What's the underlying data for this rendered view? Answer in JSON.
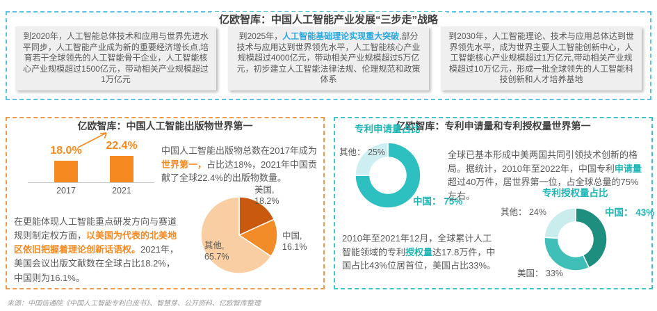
{
  "page": {
    "source_note": "来源：中国信通院《中国人工智能专利白皮书》、智慧芽、公开资料、亿欧智库整理"
  },
  "strategy": {
    "title": "亿欧智库：中国人工智能产业发展“三步走”战略",
    "milestones": [
      {
        "name": "milestone-2020",
        "segments": [
          {
            "t": "到2020年，人工智能总体技术和应用与世界先进水平同步，人工智能产业成为新的重要经济增长点,培育若干全球领先的人工智能骨干企业，人工智能核心产业规模超过1500亿元，带动相关产业规模超过1万亿元"
          }
        ]
      },
      {
        "name": "milestone-2025",
        "segments": [
          {
            "t": "到2025年，"
          },
          {
            "t": "人工智能基础理论实现重大突破",
            "hl": "blue"
          },
          {
            "t": ",部分技术与应用达到世界领先水平，人工智能核心产业规模超过4000亿元，带动相关产业规模超过5万亿元，初步建立人工智能法律法规、伦理规范和政策体系"
          }
        ]
      },
      {
        "name": "milestone-2030",
        "segments": [
          {
            "t": "到2030年，人工智能理论、技术与应用总体达到世界领先水平，成为世界主要人工智能创新中心，人工智能核心产业规模超过1万亿元,带动相关产业规模超过10万亿元，形成一批全球领先的人工智能科技创新和人才培养基地"
          }
        ]
      }
    ]
  },
  "publications": {
    "title": "亿欧智库：中国人工智能出版物世界第一",
    "intro_segments": [
      {
        "t": "中国人工智能出版物总数在2017年成为"
      },
      {
        "t": "世界第一，",
        "hl": "orange"
      },
      {
        "t": "占比达18%，2021年中国贡献了全球22.4%的出版物数量。"
      }
    ],
    "detail_segments": [
      {
        "t": "在更能体现人工智能重点研发方向与赛道规则制定权方面，"
      },
      {
        "t": "以美国为代表的北美地区依旧把握着理论创新话语权。",
        "hl": "orange"
      },
      {
        "t": "2021年，美国会议出版文献数在全球占比18.2%，中国则为16.1%。"
      }
    ]
  },
  "patents": {
    "title": "亿欧智库：专利申请量和专利授权量世界第一",
    "applications_segments": [
      {
        "t": "全球已基本形成中美两国共同引领技术创新的格局。据统计，2010年至2022年，中国专利"
      },
      {
        "t": "申请量",
        "hl": "teal"
      },
      {
        "t": "超过40万件，居世界第一位，占全球总量的75%左右。"
      }
    ],
    "grants_segments": [
      {
        "t": "2010年至2021年12月，全球累计人工智能领域的专利"
      },
      {
        "t": "授权量",
        "hl": "teal"
      },
      {
        "t": "达17.8万件，中国占比43%位居首位，美国占比33%。"
      }
    ]
  },
  "chart_data": [
    {
      "id": "publications-bar",
      "type": "bar",
      "categories": [
        "2017",
        "2021"
      ],
      "values": [
        18.0,
        22.4
      ],
      "value_labels": [
        "18.0%",
        "22.4%"
      ],
      "unit": "%",
      "ylim": [
        0,
        25
      ],
      "color": "#f6891f",
      "legend": "none",
      "grid": false
    },
    {
      "id": "publications-pie",
      "type": "pie",
      "slices": [
        {
          "name": "美国",
          "value": 18.2,
          "color": "#c9590f"
        },
        {
          "name": "中国",
          "value": 16.1,
          "color": "#f28c28"
        },
        {
          "name": "其他",
          "value": 65.7,
          "color": "#f8cea2"
        }
      ],
      "point_labels": [
        "美国, 18.2%",
        "中国, 16.1%",
        "其他, 65.7%"
      ],
      "size": 112,
      "outer_r": 55,
      "inner_r": 0,
      "start_angle": "top",
      "direction": "clockwise"
    },
    {
      "id": "patent-applications-donut",
      "type": "pie",
      "title": "专利申请量占比",
      "slices": [
        {
          "name": "中国",
          "value": 75,
          "color": "#2ec0c0"
        },
        {
          "name": "其他",
          "value": 25,
          "color": "#ceeff1"
        }
      ],
      "point_labels": [
        "中国： 75%",
        "其他： 25%"
      ],
      "size": 96,
      "outer_r": 47,
      "inner_r": 26,
      "start_angle": "top",
      "direction": "clockwise"
    },
    {
      "id": "patent-grants-donut",
      "type": "pie",
      "title": "专利授权量占比",
      "slices": [
        {
          "name": "中国",
          "value": 43,
          "color": "#1e8e7e"
        },
        {
          "name": "美国",
          "value": 33,
          "color": "#3fbfb8"
        },
        {
          "name": "其他",
          "value": 24,
          "color": "#c9ecec"
        }
      ],
      "point_labels": [
        "中国： 43%",
        "美国： 33%",
        "其他： 24%"
      ],
      "size": 92,
      "outer_r": 45,
      "inner_r": 25,
      "start_angle": "top",
      "direction": "clockwise"
    }
  ]
}
